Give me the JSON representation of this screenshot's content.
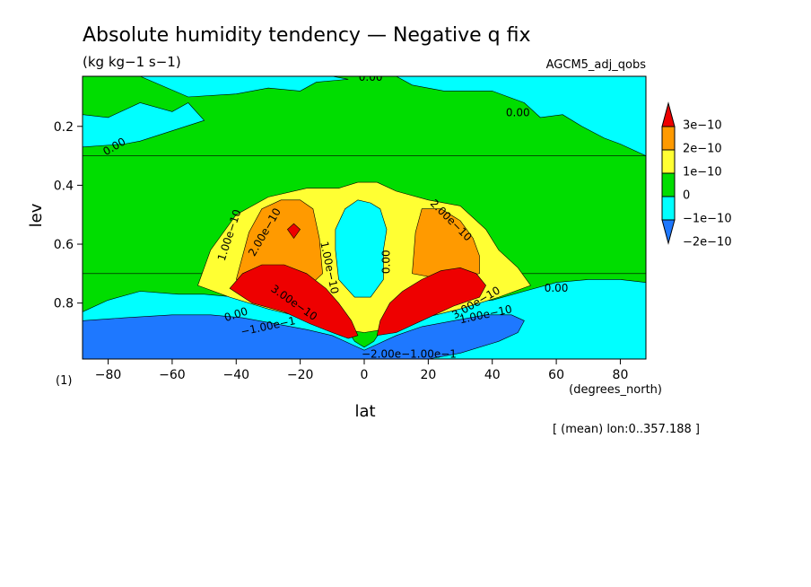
{
  "chart_data": {
    "type": "contour",
    "title": "Absolute humidity tendency — Negative q fix",
    "units": "(kg kg−1 s−1)",
    "dataset": "AGCM5_adj_qobs",
    "xlabel": "lat",
    "xunits": "(degrees_north)",
    "ylabel": "lev",
    "yunits": "(1)",
    "footnote": "[ (mean) lon:0..357.188 ]",
    "xlim": [
      -88,
      88
    ],
    "ylim": [
      0.99,
      0.03
    ],
    "x_ticks": [
      -80,
      -60,
      -40,
      -20,
      0,
      20,
      40,
      60,
      80
    ],
    "x_tick_labels": [
      "−80",
      "−60",
      "−40",
      "−20",
      "0",
      "20",
      "40",
      "60",
      "80"
    ],
    "y_ticks": [
      0.2,
      0.4,
      0.6,
      0.8
    ],
    "y_tick_labels": [
      "0.2",
      "0.4",
      "0.6",
      "0.8"
    ],
    "levels": [
      -2e-10,
      -1e-10,
      0,
      1e-10,
      2e-10,
      3e-10
    ],
    "colorbar": {
      "labels": [
        "3e−10",
        "2e−10",
        "1e−10",
        "0",
        "−1e−10",
        "−2e−10"
      ],
      "colors": [
        "#e8e800",
        "#ff9a00",
        "#ffff33",
        "#00dd00",
        "#00ffff",
        "#1e78ff",
        "#ee0000"
      ],
      "band_colors": [
        "#ee0000",
        "#ff9a00",
        "#ffff33",
        "#00dd00",
        "#00ffff",
        "#1e78ff"
      ]
    },
    "regions": [
      {
        "value_range": "0 to 1e-10",
        "color": "#00dd00",
        "polygon": [
          [
            -88,
            0.99
          ],
          [
            -88,
            0.03
          ],
          [
            88,
            0.03
          ],
          [
            88,
            0.99
          ]
        ]
      },
      {
        "value_range": "-1e-10 to 0",
        "color": "#00ffff",
        "polygon": [
          [
            -88,
            0.03
          ],
          [
            -70,
            0.03
          ],
          [
            -55,
            0.1
          ],
          [
            -40,
            0.09
          ],
          [
            -30,
            0.07
          ],
          [
            -20,
            0.08
          ],
          [
            -15,
            0.05
          ],
          [
            -5,
            0.04
          ],
          [
            -10,
            0.03
          ]
        ]
      },
      {
        "value_range": "-1e-10 to 0",
        "color": "#00ffff",
        "polygon": [
          [
            -88,
            0.16
          ],
          [
            -80,
            0.17
          ],
          [
            -70,
            0.12
          ],
          [
            -60,
            0.15
          ],
          [
            -55,
            0.12
          ],
          [
            -50,
            0.18
          ],
          [
            -70,
            0.25
          ],
          [
            -75,
            0.26
          ],
          [
            -88,
            0.27
          ]
        ]
      },
      {
        "value_range": "-1e-10 to 0",
        "color": "#00ffff",
        "polygon": [
          [
            10,
            0.03
          ],
          [
            88,
            0.03
          ],
          [
            88,
            0.3
          ],
          [
            80,
            0.26
          ],
          [
            75,
            0.24
          ],
          [
            68,
            0.2
          ],
          [
            62,
            0.16
          ],
          [
            55,
            0.17
          ],
          [
            50,
            0.12
          ],
          [
            40,
            0.08
          ],
          [
            25,
            0.08
          ],
          [
            15,
            0.06
          ]
        ]
      },
      {
        "value_range": "-1e-10 to 0",
        "color": "#00ffff",
        "polygon": [
          [
            -88,
            0.99
          ],
          [
            -88,
            0.83
          ],
          [
            -80,
            0.79
          ],
          [
            -70,
            0.76
          ],
          [
            -58,
            0.77
          ],
          [
            -50,
            0.77
          ],
          [
            -40,
            0.78
          ],
          [
            -28,
            0.8
          ],
          [
            -15,
            0.84
          ],
          [
            -6,
            0.88
          ],
          [
            -3,
            0.93
          ],
          [
            0,
            0.95
          ],
          [
            3,
            0.93
          ],
          [
            6,
            0.88
          ],
          [
            15,
            0.84
          ],
          [
            28,
            0.8
          ],
          [
            40,
            0.79
          ],
          [
            50,
            0.76
          ],
          [
            60,
            0.73
          ],
          [
            70,
            0.72
          ],
          [
            80,
            0.72
          ],
          [
            88,
            0.73
          ],
          [
            88,
            0.99
          ]
        ]
      },
      {
        "value_range": "0 to 1e-10",
        "color": "#00dd00",
        "polygon": [
          [
            -88,
            0.3
          ],
          [
            88,
            0.3
          ],
          [
            88,
            0.7
          ],
          [
            -88,
            0.7
          ]
        ]
      },
      {
        "value_range": "1e-10 to 2e-10",
        "color": "#ffff33",
        "polygon": [
          [
            -52,
            0.74
          ],
          [
            -48,
            0.62
          ],
          [
            -40,
            0.5
          ],
          [
            -30,
            0.44
          ],
          [
            -18,
            0.41
          ],
          [
            -8,
            0.41
          ],
          [
            -2,
            0.39
          ],
          [
            4,
            0.39
          ],
          [
            10,
            0.42
          ],
          [
            20,
            0.45
          ],
          [
            30,
            0.47
          ],
          [
            38,
            0.55
          ],
          [
            42,
            0.62
          ],
          [
            48,
            0.68
          ],
          [
            52,
            0.74
          ],
          [
            42,
            0.78
          ],
          [
            30,
            0.82
          ],
          [
            15,
            0.86
          ],
          [
            6,
            0.89
          ],
          [
            0,
            0.9
          ],
          [
            -6,
            0.89
          ],
          [
            -15,
            0.86
          ],
          [
            -30,
            0.82
          ],
          [
            -42,
            0.78
          ]
        ]
      },
      {
        "value_range": "-1e-10 to 0",
        "color": "#00ffff",
        "polygon": [
          [
            -9,
            0.55
          ],
          [
            -6,
            0.48
          ],
          [
            -2,
            0.45
          ],
          [
            2,
            0.46
          ],
          [
            5,
            0.48
          ],
          [
            7,
            0.55
          ],
          [
            6,
            0.62
          ],
          [
            6,
            0.72
          ],
          [
            2,
            0.78
          ],
          [
            -3,
            0.78
          ],
          [
            -8,
            0.72
          ],
          [
            -9,
            0.62
          ]
        ]
      },
      {
        "value_range": "2e-10 to 3e-10",
        "color": "#ff9a00",
        "polygon": [
          [
            -40,
            0.72
          ],
          [
            -36,
            0.56
          ],
          [
            -32,
            0.48
          ],
          [
            -26,
            0.45
          ],
          [
            -20,
            0.45
          ],
          [
            -16,
            0.48
          ],
          [
            -14,
            0.58
          ],
          [
            -13,
            0.7
          ],
          [
            -16,
            0.73
          ],
          [
            -30,
            0.73
          ]
        ]
      },
      {
        "value_range": "2e-10 to 3e-10",
        "color": "#ff9a00",
        "polygon": [
          [
            15,
            0.7
          ],
          [
            16,
            0.56
          ],
          [
            18,
            0.48
          ],
          [
            24,
            0.48
          ],
          [
            30,
            0.52
          ],
          [
            34,
            0.58
          ],
          [
            36,
            0.64
          ],
          [
            36,
            0.7
          ],
          [
            25,
            0.72
          ]
        ]
      },
      {
        "value_range": "> 3e-10",
        "color": "#ee0000",
        "polygon": [
          [
            -42,
            0.75
          ],
          [
            -38,
            0.7
          ],
          [
            -32,
            0.67
          ],
          [
            -25,
            0.67
          ],
          [
            -18,
            0.7
          ],
          [
            -12,
            0.75
          ],
          [
            -8,
            0.8
          ],
          [
            -4,
            0.86
          ],
          [
            -2,
            0.91
          ],
          [
            -5,
            0.92
          ],
          [
            -10,
            0.9
          ],
          [
            -17,
            0.87
          ],
          [
            -25,
            0.83
          ],
          [
            -35,
            0.8
          ]
        ]
      },
      {
        "value_range": "> 3e-10",
        "color": "#ee0000",
        "polygon": [
          [
            4,
            0.91
          ],
          [
            5,
            0.86
          ],
          [
            8,
            0.8
          ],
          [
            12,
            0.76
          ],
          [
            18,
            0.72
          ],
          [
            24,
            0.69
          ],
          [
            30,
            0.68
          ],
          [
            35,
            0.7
          ],
          [
            38,
            0.74
          ],
          [
            36,
            0.78
          ],
          [
            28,
            0.81
          ],
          [
            18,
            0.86
          ],
          [
            10,
            0.9
          ]
        ]
      },
      {
        "value_range": "> 3e-10",
        "color": "#ee0000",
        "polygon": [
          [
            -24,
            0.55
          ],
          [
            -22,
            0.53
          ],
          [
            -20,
            0.55
          ],
          [
            -22,
            0.58
          ]
        ]
      },
      {
        "value_range": "< -2e-10",
        "color": "#1e78ff",
        "polygon": [
          [
            -88,
            0.99
          ],
          [
            -88,
            0.86
          ],
          [
            -75,
            0.85
          ],
          [
            -60,
            0.84
          ],
          [
            -48,
            0.84
          ],
          [
            -38,
            0.85
          ],
          [
            -28,
            0.87
          ],
          [
            -18,
            0.89
          ],
          [
            -10,
            0.91
          ],
          [
            -4,
            0.94
          ],
          [
            0,
            0.96
          ],
          [
            4,
            0.94
          ],
          [
            10,
            0.91
          ],
          [
            18,
            0.88
          ],
          [
            28,
            0.86
          ],
          [
            38,
            0.84
          ],
          [
            46,
            0.84
          ],
          [
            50,
            0.86
          ],
          [
            48,
            0.9
          ],
          [
            42,
            0.93
          ],
          [
            30,
            0.97
          ],
          [
            20,
            0.99
          ]
        ]
      }
    ],
    "contour_labels": [
      {
        "text": "0.00",
        "x": 2,
        "y": 0.035,
        "rotation": 0
      },
      {
        "text": "0.00",
        "x": 48,
        "y": 0.155,
        "rotation": 0
      },
      {
        "text": "0.00",
        "x": -78,
        "y": 0.27,
        "rotation": -30
      },
      {
        "text": "0.00",
        "x": 60,
        "y": 0.75,
        "rotation": 0
      },
      {
        "text": "0.00",
        "x": 7,
        "y": 0.66,
        "rotation": -90
      },
      {
        "text": "1.00e−10",
        "x": -42,
        "y": 0.57,
        "rotation": -72
      },
      {
        "text": "2.00e−10",
        "x": -31,
        "y": 0.56,
        "rotation": -60
      },
      {
        "text": "1.00e−10",
        "x": -11,
        "y": 0.68,
        "rotation": 78
      },
      {
        "text": "3.00e−10",
        "x": -22,
        "y": 0.8,
        "rotation": 35
      },
      {
        "text": "2.00e−10",
        "x": 27,
        "y": 0.52,
        "rotation": 45
      },
      {
        "text": "3.00e−10",
        "x": 35,
        "y": 0.8,
        "rotation": -30
      },
      {
        "text": "1.00e−10",
        "x": 38,
        "y": 0.84,
        "rotation": -12
      },
      {
        "text": "0.00",
        "x": -40,
        "y": 0.84,
        "rotation": -18
      },
      {
        "text": "−1.00e−1",
        "x": -30,
        "y": 0.88,
        "rotation": -12
      },
      {
        "text": "−2.00e−1.00e−1",
        "x": 14,
        "y": 0.975,
        "rotation": 0
      }
    ]
  }
}
